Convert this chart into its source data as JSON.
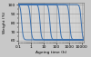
{
  "title": "",
  "xlabel": "Ageing time (h)",
  "ylabel": "Weight (%)",
  "ylim": [
    58,
    102
  ],
  "xlim_log": [
    0.1,
    15000
  ],
  "yticks": [
    60,
    70,
    80,
    90,
    100
  ],
  "yminorticks": [
    65,
    75,
    85,
    95
  ],
  "curve_color": "#3a6fad",
  "grid_major_color": "#888888",
  "grid_minor_color": "#bbbbbb",
  "bg_color": "#c8c8c8",
  "plot_bg_color": "#d4d4d4",
  "drop_x_centers": [
    0.18,
    0.9,
    5,
    30,
    180,
    1100,
    9000
  ],
  "drop_steepness": 18.0,
  "y_top": 100.5,
  "y_bot": 61.0,
  "figsize": [
    1.0,
    0.63
  ],
  "dpi": 100
}
